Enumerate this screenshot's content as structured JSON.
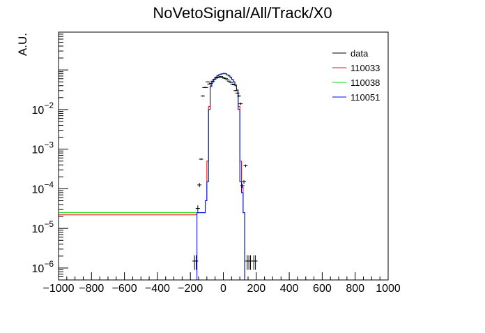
{
  "chart_data": {
    "type": "line",
    "title": "NoVetoSignal/All/Track/X0",
    "xlabel": "",
    "ylabel": "A.U.",
    "xlim": [
      -1000,
      1000
    ],
    "ylim": [
      5e-07,
      0.9
    ],
    "yscale": "log",
    "grid": false,
    "legend_position": "top-right",
    "x_ticks": [
      -1000,
      -800,
      -600,
      -400,
      -200,
      0,
      200,
      400,
      600,
      800,
      1000
    ],
    "x_tick_labels": [
      "−1000",
      "−800",
      "−600",
      "−400",
      "−200",
      "0",
      "200",
      "400",
      "600",
      "800",
      "1000"
    ],
    "y_ticks": [
      {
        "value": 1e-06,
        "base": "10",
        "exp": "−6"
      },
      {
        "value": 1e-05,
        "base": "10",
        "exp": "−5"
      },
      {
        "value": 0.0001,
        "base": "10",
        "exp": "−4"
      },
      {
        "value": 0.001,
        "base": "10",
        "exp": "−3"
      },
      {
        "value": 0.01,
        "base": "10",
        "exp": "−2"
      }
    ],
    "series": [
      {
        "name": "data",
        "color": "#000000",
        "style": "points",
        "points": [
          {
            "x": -175,
            "y": 1.5e-06,
            "err": 6e-07
          },
          {
            "x": -165,
            "y": 1.5e-06,
            "err": 6e-07
          },
          {
            "x": -155,
            "y": 3.2e-05,
            "err": 6e-06
          },
          {
            "x": -145,
            "y": 0.000125,
            "err": 1.5e-05
          },
          {
            "x": -135,
            "y": 0.00056,
            "err": 3e-05
          },
          {
            "x": -125,
            "y": 0.022,
            "err": 0.001
          },
          {
            "x": -115,
            "y": 0.036,
            "err": 0.001
          },
          {
            "x": -105,
            "y": 0.036,
            "err": 0.001
          },
          {
            "x": -95,
            "y": 0.05,
            "err": 0.001
          },
          {
            "x": -85,
            "y": 0.044,
            "err": 0.001
          },
          {
            "x": -75,
            "y": 0.046,
            "err": 0.001
          },
          {
            "x": -65,
            "y": 0.052,
            "err": 0.001
          },
          {
            "x": -55,
            "y": 0.058,
            "err": 0.001
          },
          {
            "x": -45,
            "y": 0.062,
            "err": 0.001
          },
          {
            "x": -35,
            "y": 0.064,
            "err": 0.001
          },
          {
            "x": -25,
            "y": 0.066,
            "err": 0.001
          },
          {
            "x": -15,
            "y": 0.068,
            "err": 0.001
          },
          {
            "x": -5,
            "y": 0.065,
            "err": 0.001
          },
          {
            "x": 5,
            "y": 0.062,
            "err": 0.001
          },
          {
            "x": 15,
            "y": 0.06,
            "err": 0.001
          },
          {
            "x": 25,
            "y": 0.056,
            "err": 0.001
          },
          {
            "x": 35,
            "y": 0.052,
            "err": 0.001
          },
          {
            "x": 45,
            "y": 0.048,
            "err": 0.001
          },
          {
            "x": 55,
            "y": 0.044,
            "err": 0.001
          },
          {
            "x": 65,
            "y": 0.042,
            "err": 0.001
          },
          {
            "x": 75,
            "y": 0.03,
            "err": 0.001
          },
          {
            "x": 85,
            "y": 0.026,
            "err": 0.001
          },
          {
            "x": 95,
            "y": 0.022,
            "err": 0.001
          },
          {
            "x": 105,
            "y": 0.014,
            "err": 0.001
          },
          {
            "x": 115,
            "y": 0.00012,
            "err": 1.5e-05
          },
          {
            "x": 125,
            "y": 0.00015,
            "err": 1.5e-05
          },
          {
            "x": 135,
            "y": 0.00038,
            "err": 3e-05
          },
          {
            "x": 145,
            "y": 1.5e-06,
            "err": 6e-07
          },
          {
            "x": 155,
            "y": 1.5e-06,
            "err": 6e-07
          },
          {
            "x": 165,
            "y": 1.5e-06,
            "err": 6e-07
          },
          {
            "x": 185,
            "y": 1.5e-06,
            "err": 6e-07
          },
          {
            "x": 195,
            "y": 1.5e-06,
            "err": 6e-07
          }
        ]
      },
      {
        "name": "110033",
        "color": "#ff0000",
        "style": "step",
        "bin_width": 10,
        "bins": [
          {
            "x": -1000,
            "y": 2.2e-05
          },
          {
            "x": -160,
            "y": 2.5e-05
          },
          {
            "x": -110,
            "y": 5e-05
          },
          {
            "x": -100,
            "y": 0.0005
          },
          {
            "x": -90,
            "y": 0.012
          },
          {
            "x": -80,
            "y": 0.04
          },
          {
            "x": -70,
            "y": 0.05
          },
          {
            "x": -60,
            "y": 0.058
          },
          {
            "x": -50,
            "y": 0.066
          },
          {
            "x": -40,
            "y": 0.072
          },
          {
            "x": -30,
            "y": 0.075
          },
          {
            "x": -20,
            "y": 0.078
          },
          {
            "x": -10,
            "y": 0.08
          },
          {
            "x": 0,
            "y": 0.082
          },
          {
            "x": 10,
            "y": 0.08
          },
          {
            "x": 20,
            "y": 0.075
          },
          {
            "x": 30,
            "y": 0.072
          },
          {
            "x": 40,
            "y": 0.066
          },
          {
            "x": 50,
            "y": 0.058
          },
          {
            "x": 60,
            "y": 0.05
          },
          {
            "x": 70,
            "y": 0.042
          },
          {
            "x": 80,
            "y": 0.032
          },
          {
            "x": 90,
            "y": 0.012
          },
          {
            "x": 100,
            "y": 0.0005
          },
          {
            "x": 110,
            "y": 0.00011
          },
          {
            "x": 120,
            "y": 2.5e-05
          }
        ]
      },
      {
        "name": "110038",
        "color": "#00dd00",
        "style": "step",
        "bin_width": 10,
        "bins": [
          {
            "x": -1000,
            "y": 2.5e-05
          },
          {
            "x": -160,
            "y": 2.5e-05
          },
          {
            "x": -110,
            "y": 5e-05
          },
          {
            "x": -100,
            "y": 0.00015
          },
          {
            "x": -90,
            "y": 0.01
          },
          {
            "x": -80,
            "y": 0.038
          },
          {
            "x": -70,
            "y": 0.049
          },
          {
            "x": -60,
            "y": 0.057
          },
          {
            "x": -50,
            "y": 0.064
          },
          {
            "x": -40,
            "y": 0.07
          },
          {
            "x": -30,
            "y": 0.074
          },
          {
            "x": -20,
            "y": 0.077
          },
          {
            "x": -10,
            "y": 0.079
          },
          {
            "x": 0,
            "y": 0.08
          },
          {
            "x": 10,
            "y": 0.079
          },
          {
            "x": 20,
            "y": 0.074
          },
          {
            "x": 30,
            "y": 0.07
          },
          {
            "x": 40,
            "y": 0.064
          },
          {
            "x": 50,
            "y": 0.057
          },
          {
            "x": 60,
            "y": 0.049
          },
          {
            "x": 70,
            "y": 0.04
          },
          {
            "x": 80,
            "y": 0.03
          },
          {
            "x": 90,
            "y": 0.01
          },
          {
            "x": 100,
            "y": 0.00015
          },
          {
            "x": 110,
            "y": 8e-05
          },
          {
            "x": 120,
            "y": 2.5e-05
          }
        ]
      },
      {
        "name": "110051",
        "color": "#0000ff",
        "style": "step",
        "bin_width": 10,
        "bins": [
          {
            "x": -160,
            "y": 2.5e-05
          },
          {
            "x": -110,
            "y": 5e-05
          },
          {
            "x": -100,
            "y": 0.00015
          },
          {
            "x": -90,
            "y": 0.01
          },
          {
            "x": -80,
            "y": 0.038
          },
          {
            "x": -70,
            "y": 0.05
          },
          {
            "x": -60,
            "y": 0.058
          },
          {
            "x": -50,
            "y": 0.065
          },
          {
            "x": -40,
            "y": 0.071
          },
          {
            "x": -30,
            "y": 0.075
          },
          {
            "x": -20,
            "y": 0.078
          },
          {
            "x": -10,
            "y": 0.081
          },
          {
            "x": 0,
            "y": 0.082
          },
          {
            "x": 10,
            "y": 0.08
          },
          {
            "x": 20,
            "y": 0.075
          },
          {
            "x": 30,
            "y": 0.071
          },
          {
            "x": 40,
            "y": 0.065
          },
          {
            "x": 50,
            "y": 0.058
          },
          {
            "x": 60,
            "y": 0.05
          },
          {
            "x": 70,
            "y": 0.04
          },
          {
            "x": 80,
            "y": 0.03
          },
          {
            "x": 90,
            "y": 0.01
          },
          {
            "x": 100,
            "y": 0.00015
          },
          {
            "x": 110,
            "y": 8e-05
          },
          {
            "x": 120,
            "y": 2.5e-05
          }
        ]
      }
    ]
  }
}
